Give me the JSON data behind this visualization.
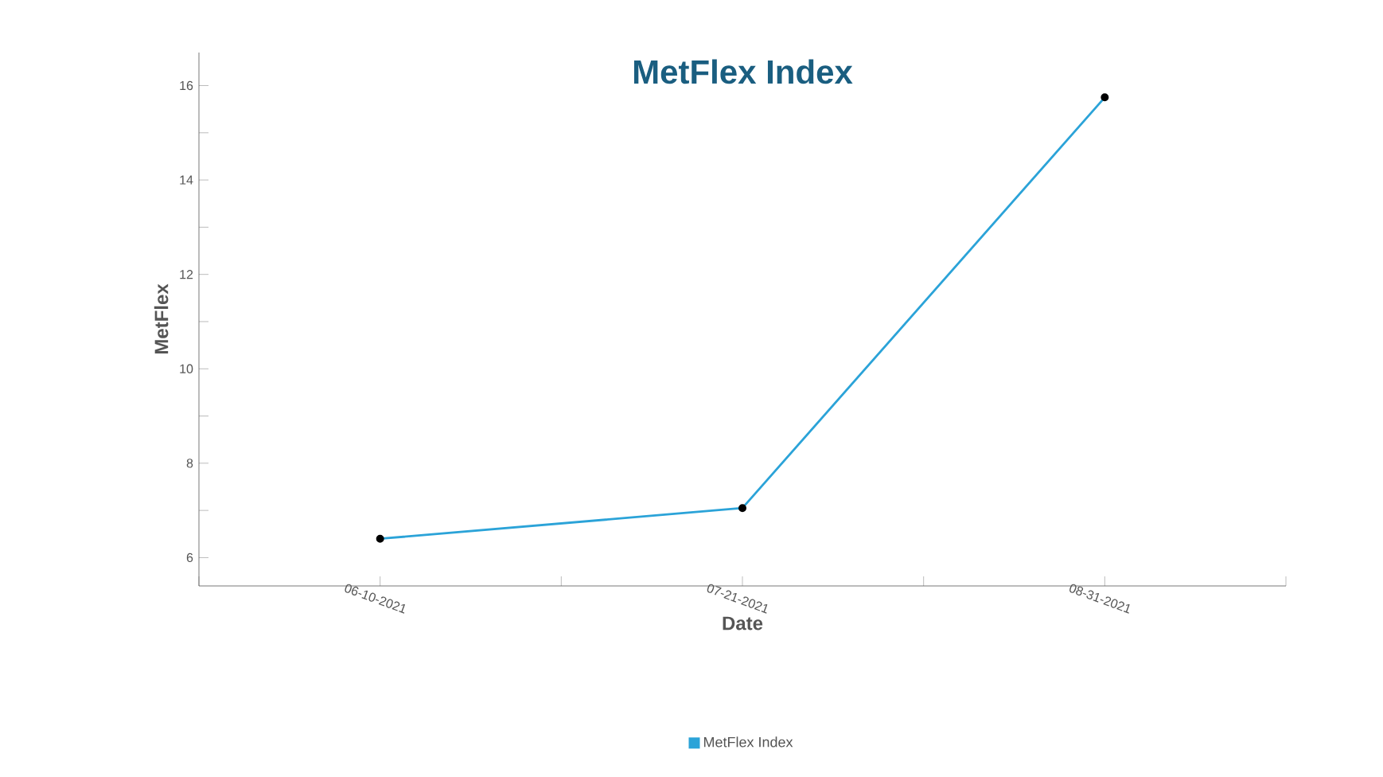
{
  "chart_data": {
    "type": "line",
    "title": "MetFlex Index",
    "xlabel": "Date",
    "ylabel": "MetFlex",
    "categories": [
      "06-10-2021",
      "07-21-2021",
      "08-31-2021"
    ],
    "series": [
      {
        "name": "MetFlex Index",
        "color": "#2ba3d8",
        "values": [
          6.4,
          7.05,
          15.75
        ]
      }
    ],
    "ylim": [
      5.4,
      16.7
    ],
    "yticks": [
      6,
      8,
      10,
      12,
      14,
      16
    ],
    "marker": "circle",
    "line_style": "solid",
    "grid": false,
    "legend": "bottom"
  }
}
